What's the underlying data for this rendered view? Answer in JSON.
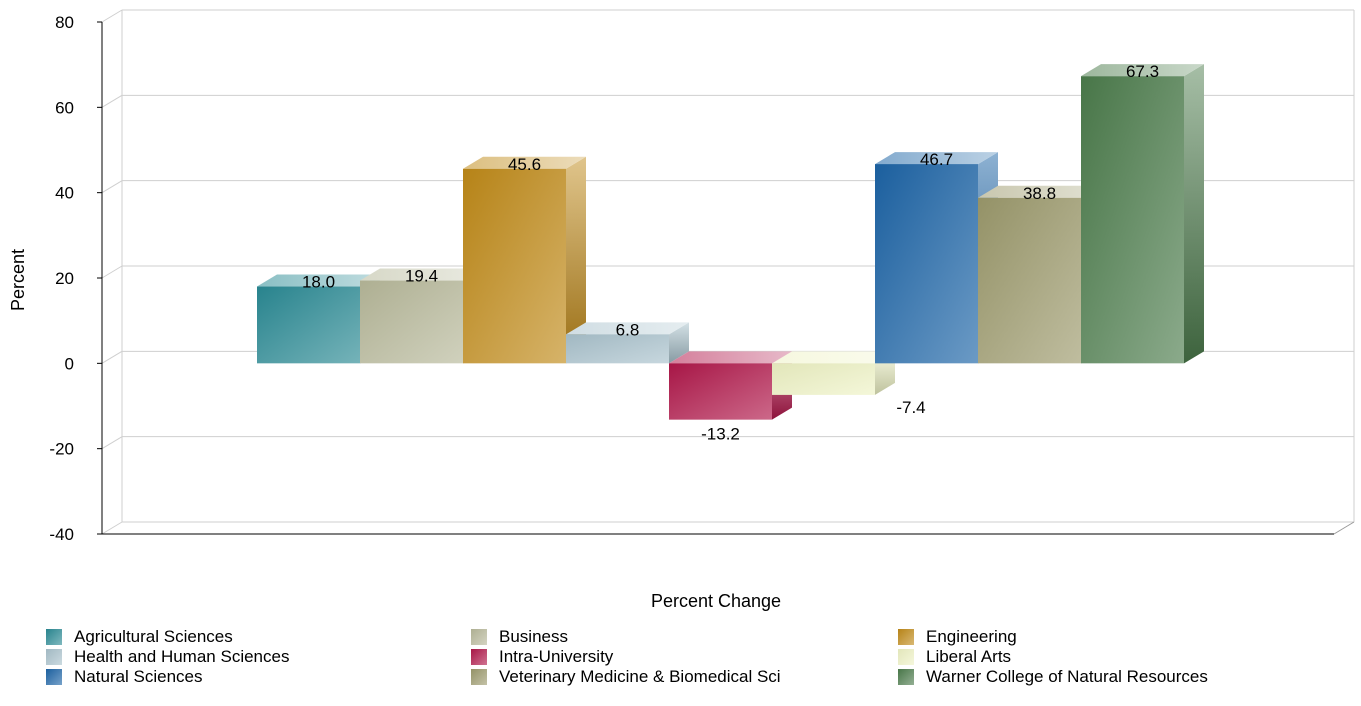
{
  "chart_data": {
    "type": "bar",
    "ylabel": "Percent",
    "xlabel": "Percent Change",
    "ylim": [
      -40,
      80
    ],
    "yticks": [
      -40,
      -20,
      0,
      20,
      40,
      60,
      80
    ],
    "grid": true,
    "legend_position": "bottom",
    "series": [
      {
        "name": "Agricultural Sciences",
        "value": 18.0,
        "label": "18.0",
        "color": "#2a8a94"
      },
      {
        "name": "Business",
        "value": 19.4,
        "label": "19.4",
        "color": "#b7b89a"
      },
      {
        "name": "Engineering",
        "value": 45.6,
        "label": "45.6",
        "color": "#c08a18"
      },
      {
        "name": "Health and Human Sciences",
        "value": 6.8,
        "label": "6.8",
        "color": "#a9c2cc"
      },
      {
        "name": "Intra-University",
        "value": -13.2,
        "label": "-13.2",
        "color": "#b0174a"
      },
      {
        "name": "Liberal Arts",
        "value": -7.4,
        "label": "-7.4",
        "color": "#eef2c4"
      },
      {
        "name": "Natural Sciences",
        "value": 46.7,
        "label": "46.7",
        "color": "#1c64a6"
      },
      {
        "name": "Veterinary Medicine & Biomedical Sci",
        "value": 38.8,
        "label": "38.8",
        "color": "#9c9a6c"
      },
      {
        "name": "Warner College of Natural Resources",
        "value": 67.3,
        "label": "67.3",
        "color": "#4c7c4c"
      }
    ]
  }
}
